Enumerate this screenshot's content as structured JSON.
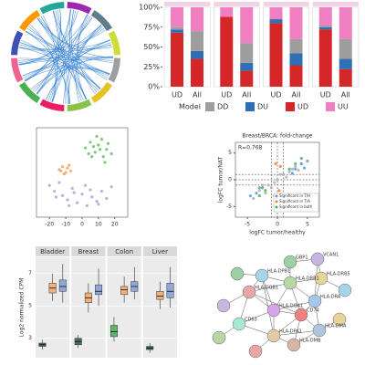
{
  "chart_data": [
    {
      "type": "stacked_bar",
      "categories": [
        "UD",
        "All",
        "UD",
        "All",
        "UD",
        "All",
        "UD",
        "All"
      ],
      "series": [
        {
          "name": "DD",
          "color": "#9e9e9e",
          "values": [
            3,
            25,
            0,
            25,
            0,
            18,
            2,
            25
          ]
        },
        {
          "name": "DU",
          "color": "#2f6fb5",
          "values": [
            4,
            10,
            0,
            10,
            5,
            15,
            3,
            13
          ]
        },
        {
          "name": "UD",
          "color": "#d62728",
          "values": [
            68,
            35,
            88,
            20,
            80,
            27,
            72,
            22
          ]
        },
        {
          "name": "UU",
          "color": "#ef7fc1",
          "values": [
            25,
            30,
            12,
            45,
            15,
            40,
            23,
            40
          ]
        }
      ],
      "legend_title": "Model",
      "ylim": [
        0,
        100
      ],
      "yticks": [
        {
          "value": 0,
          "label": "0%"
        },
        {
          "value": 25,
          "label": "25%"
        },
        {
          "value": 50,
          "label": "50%"
        },
        {
          "value": 75,
          "label": "75%"
        },
        {
          "value": 100,
          "label": "100%"
        }
      ]
    },
    {
      "type": "scatter",
      "xlim": [
        -28,
        28
      ],
      "ylim": [
        -30,
        32
      ],
      "xticks": [
        -20,
        -10,
        0,
        10,
        20
      ],
      "series": [
        {
          "color": "#6fbf6a",
          "x": [
            2,
            5,
            8,
            10,
            12,
            15,
            18,
            6,
            9,
            13,
            16,
            4,
            11,
            14,
            7
          ],
          "y": [
            18,
            22,
            15,
            20,
            24,
            17,
            14,
            12,
            26,
            12,
            21,
            14,
            17,
            8,
            19
          ]
        },
        {
          "color": "#f0a35a",
          "x": [
            -14,
            -12,
            -10,
            -9,
            -7,
            -11,
            -13,
            -8
          ],
          "y": [
            3,
            5,
            1,
            4,
            2,
            0,
            2,
            6
          ]
        },
        {
          "color": "#a9a6d6",
          "x": [
            -20,
            -17,
            -14,
            -12,
            -9,
            -6,
            -3,
            0,
            3,
            6,
            9,
            12,
            15,
            18,
            -16,
            -8,
            2,
            10,
            -5,
            5
          ],
          "y": [
            -8,
            -12,
            -6,
            -15,
            -18,
            -10,
            -20,
            -14,
            -22,
            -16,
            -19,
            -12,
            -17,
            -9,
            -16,
            -22,
            -8,
            -21,
            -13,
            -11
          ]
        }
      ]
    },
    {
      "type": "scatter",
      "title": "Breast/BRCA: fold-change",
      "annotation": "R=0.768",
      "xlabel": "logFC tumor/healthy",
      "ylabel": "logFC tumor/NAT",
      "xlim": [
        -7,
        7
      ],
      "ylim": [
        -7,
        7
      ],
      "xticks": [
        -5,
        0,
        5
      ],
      "yticks": [
        -5,
        0,
        5
      ],
      "series": [
        {
          "color": "#b0b0b0",
          "x": [
            -4,
            -3,
            -2,
            -1.5,
            -1,
            0,
            1,
            2,
            3,
            4,
            -2.5,
            1.5,
            2.5,
            -0.5,
            3.5,
            0.5
          ],
          "y": [
            -3.5,
            -2,
            -2.5,
            -1,
            -1.5,
            0,
            1,
            1.5,
            2.5,
            3,
            -1,
            0.5,
            2,
            -0.5,
            1.8,
            1
          ]
        },
        {
          "name": "Significant in T/H",
          "color": "#5b9bd5",
          "x": [
            -4.5,
            -3.5,
            3,
            4,
            5,
            -3,
            2.5,
            4.5
          ],
          "y": [
            -3,
            -2.5,
            2,
            3,
            3.5,
            -1.5,
            1.2,
            2.2
          ]
        },
        {
          "name": "Significant in T/A",
          "color": "#f08030",
          "x": [
            -0.5,
            0.3,
            0.5,
            -0.3,
            0.2
          ],
          "y": [
            -3,
            -2,
            2.5,
            3,
            -4
          ]
        },
        {
          "name": "Significant in both",
          "color": "#4caf50",
          "x": [
            -3,
            -2,
            2,
            3,
            4,
            -2.5
          ],
          "y": [
            -3,
            -2,
            2,
            3,
            4,
            -1.5
          ]
        }
      ]
    },
    {
      "type": "box",
      "ylabel": "Log2 normalized CPM",
      "ylim": [
        1.8,
        8
      ],
      "yticks": [
        3,
        5,
        7
      ],
      "facets": [
        {
          "name": "Bladder",
          "boxes": [
            {
              "color": "#4a6a6a",
              "min": 2.3,
              "q1": 2.5,
              "median": 2.6,
              "q3": 2.7,
              "max": 2.9
            },
            {
              "color": "#f0b27a",
              "min": 5.3,
              "q1": 5.8,
              "median": 6.1,
              "q3": 6.4,
              "max": 7.0
            },
            {
              "color": "#8fa8d8",
              "min": 5.2,
              "q1": 5.9,
              "median": 6.2,
              "q3": 6.6,
              "max": 7.6
            }
          ]
        },
        {
          "name": "Breast",
          "boxes": [
            {
              "color": "#4a6a6a",
              "min": 2.4,
              "q1": 2.6,
              "median": 2.8,
              "q3": 3.0,
              "max": 3.2
            },
            {
              "color": "#f0b27a",
              "min": 4.6,
              "q1": 5.2,
              "median": 5.5,
              "q3": 5.8,
              "max": 6.4
            },
            {
              "color": "#8fa8d8",
              "min": 5.0,
              "q1": 5.7,
              "median": 5.9,
              "q3": 6.3,
              "max": 7.3
            }
          ]
        },
        {
          "name": "Colon",
          "boxes": [
            {
              "color": "#5fb56a",
              "min": 2.8,
              "q1": 3.1,
              "median": 3.4,
              "q3": 3.8,
              "max": 4.3
            },
            {
              "color": "#f0b27a",
              "min": 5.2,
              "q1": 5.7,
              "median": 6.0,
              "q3": 6.2,
              "max": 6.8
            },
            {
              "color": "#8fa8d8",
              "min": 5.4,
              "q1": 5.9,
              "median": 6.2,
              "q3": 6.5,
              "max": 7.4
            }
          ]
        },
        {
          "name": "Liver",
          "boxes": [
            {
              "color": "#4a6a6a",
              "min": 2.1,
              "q1": 2.3,
              "median": 2.4,
              "q3": 2.5,
              "max": 2.7
            },
            {
              "color": "#f0b27a",
              "min": 4.8,
              "q1": 5.4,
              "median": 5.6,
              "q3": 5.9,
              "max": 6.5
            },
            {
              "color": "#8fa8d8",
              "min": 4.9,
              "q1": 5.5,
              "median": 5.9,
              "q3": 6.4,
              "max": 7.4
            }
          ]
        }
      ]
    }
  ],
  "network": {
    "nodes": [
      "GBP1",
      "VCAN1",
      "HLA-DPB1",
      "HLA-DRB5",
      "HLA-DRB1",
      "HLA-DQB1",
      "HLA-DRA",
      "HLA-DQA1",
      "CD74",
      "CD63",
      "HLA-DPA1",
      "HLA-DMA",
      "HLA-DMB"
    ]
  }
}
